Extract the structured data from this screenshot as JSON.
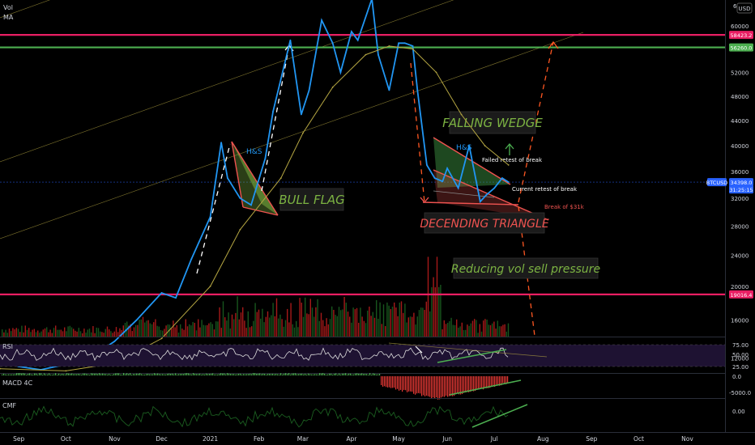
{
  "header": {
    "vol_label": "Vol",
    "ma_label": "MA",
    "currency_badge": "USD"
  },
  "panes": {
    "rsi_label": "RSI",
    "macd_label": "MACD 4C",
    "cmf_label": "CMF"
  },
  "price_axis": {
    "ticks": [
      60000,
      56000,
      52000,
      48000,
      44000,
      40000,
      36000,
      32000,
      28000,
      24000,
      20000,
      16000,
      12000
    ],
    "top_tick": "6"
  },
  "rsi_axis": {
    "ticks": [
      "75.00",
      "50.00",
      "25.00"
    ]
  },
  "macd_axis": {
    "ticks": [
      "0.0",
      "-5000.0"
    ]
  },
  "cmf_axis": {
    "ticks": [
      "0.00"
    ]
  },
  "price_badges": [
    {
      "name": "level-badge-58423",
      "text": "58423.2",
      "price": 58423.2,
      "color": "#e91e63"
    },
    {
      "name": "level-badge-56260",
      "text": "56260.0",
      "price": 56260.0,
      "color": "#4caf50"
    },
    {
      "name": "level-badge-19016",
      "text": "19016.4",
      "price": 19016.4,
      "color": "#e91e63"
    },
    {
      "name": "symbol-badge-btcusd",
      "text": "BTCUSD",
      "price": 34398.0,
      "color": "#2962ff"
    },
    {
      "name": "last-price-badge",
      "text": "34398.0",
      "price": 34398.0,
      "color": "#2962ff"
    },
    {
      "name": "countdown-badge",
      "text": "31:25:15",
      "price": 33300.0,
      "color": "#2962ff"
    }
  ],
  "time_axis": [
    "Sep",
    "Oct",
    "Nov",
    "Dec",
    "2021",
    "Feb",
    "Mar",
    "Apr",
    "May",
    "Jun",
    "Jul",
    "Aug",
    "Sep",
    "Oct",
    "Nov"
  ],
  "annotations": {
    "bull_flag": "BULL FLAG",
    "falling_wedge": "FALLING WEDGE",
    "descending_triangle": "DECENDING TRIANGLE",
    "reducing_vol": "Reducing vol sell pressure",
    "hs_1": "H&S",
    "hs_2": "H&S",
    "failed_retest": "Failed retest of break",
    "current_retest": "Current retest of break",
    "break_31k": "Break of $31k"
  },
  "colors": {
    "price_line": "#2196f3",
    "ma_line": "#b5a642",
    "magenta_level": "#e91e63",
    "green_level": "#4caf50",
    "projection": "#ff5722",
    "annotation_green": "#7cb342",
    "annotation_red": "#ef5350"
  },
  "chart_data": {
    "type": "line",
    "title": "",
    "series": [
      {
        "name": "",
        "x": [
          "2020-08-20",
          "2020-09-01",
          "2020-09-15",
          "2020-10-01",
          "2020-10-15",
          "2020-11-01",
          "2020-11-15",
          "2020-12-01",
          "2020-12-10",
          "2020-12-20",
          "2021-01-01",
          "2021-01-08",
          "2021-01-12",
          "2021-01-20",
          "2021-01-27",
          "2021-02-05",
          "2021-02-10",
          "2021-02-21",
          "2021-02-28",
          "2021-03-05",
          "2021-03-13",
          "2021-03-20",
          "2021-03-25",
          "2021-04-01",
          "2021-04-05",
          "2021-04-14",
          "2021-04-18",
          "2021-04-25",
          "2021-05-01",
          "2021-05-05",
          "2021-05-10",
          "2021-05-13",
          "2021-05-19",
          "2021-05-24",
          "2021-05-29",
          "2021-06-01",
          "2021-06-08",
          "2021-06-15",
          "2021-06-22",
          "2021-06-26",
          "2021-07-01",
          "2021-07-06",
          "2021-07-10"
        ],
        "values": [
          11800,
          11200,
          10900,
          11400,
          11900,
          13700,
          16000,
          19200,
          18600,
          23500,
          29300,
          40500,
          35000,
          32000,
          31000,
          38000,
          45500,
          57500,
          45000,
          49000,
          61000,
          57000,
          52000,
          59000,
          57500,
          64800,
          55000,
          49000,
          57000,
          57000,
          56500,
          49000,
          37000,
          35000,
          34500,
          36500,
          33500,
          40000,
          31500,
          32500,
          33500,
          35000,
          34398
        ]
      },
      {
        "name": "MA",
        "x": [
          "2020-08-20",
          "2020-10-01",
          "2020-11-01",
          "2020-12-01",
          "2021-01-01",
          "2021-01-20",
          "2021-02-15",
          "2021-03-01",
          "2021-03-20",
          "2021-04-10",
          "2021-04-25",
          "2021-05-10",
          "2021-05-25",
          "2021-06-10",
          "2021-06-25",
          "2021-07-10"
        ],
        "values": [
          11000,
          10800,
          11500,
          14000,
          20000,
          27500,
          35000,
          42000,
          49500,
          55000,
          56500,
          56000,
          52000,
          45000,
          40000,
          37000
        ]
      }
    ],
    "horizontal_levels": [
      58423.2,
      56260.0,
      19016.4
    ],
    "ylim": [
      10000,
      66000
    ],
    "xlim": [
      "2020-08-20",
      "2021-11-25"
    ],
    "xlabel": "",
    "ylabel": "",
    "grid": false
  }
}
